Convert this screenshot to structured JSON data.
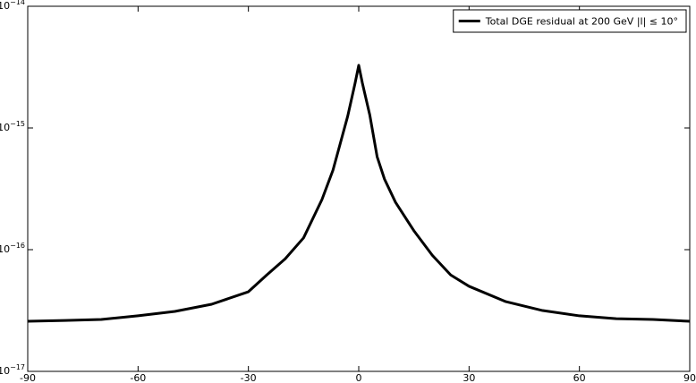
{
  "chart_data": {
    "type": "line",
    "log_y": true,
    "x": [
      -90,
      -80,
      -70,
      -60,
      -50,
      -40,
      -30,
      -25,
      -20,
      -15,
      -10,
      -7,
      -5,
      -3,
      -1,
      0,
      1,
      3,
      5,
      7,
      10,
      15,
      20,
      25,
      30,
      40,
      50,
      60,
      70,
      80,
      90
    ],
    "series": [
      {
        "name": "Total DGE residual at 200 GeV |l| ≤ 10°",
        "color": "#000000",
        "values": [
          2.58e-17,
          2.62e-17,
          2.67e-17,
          2.86e-17,
          3.11e-17,
          3.56e-17,
          4.51e-17,
          6.2e-17,
          8.4e-17,
          1.25e-16,
          2.58e-16,
          4.5e-16,
          7.5e-16,
          1.25e-15,
          2.33e-15,
          3.27e-15,
          2.33e-15,
          1.28e-15,
          5.8e-16,
          3.8e-16,
          2.45e-16,
          1.43e-16,
          9e-17,
          6.2e-17,
          5e-17,
          3.74e-17,
          3.16e-17,
          2.86e-17,
          2.71e-17,
          2.67e-17,
          2.58e-17
        ]
      }
    ],
    "xlim": [
      -90,
      90
    ],
    "xticks": [
      -90,
      -60,
      -30,
      0,
      30,
      60,
      90
    ],
    "ylim": [
      1e-17,
      1e-14
    ],
    "yticks": [
      {
        "value": 1e-17,
        "label": "10",
        "exponent": "−17"
      },
      {
        "value": 1e-16,
        "label": "10",
        "exponent": "−16"
      },
      {
        "value": 1e-15,
        "label": "10",
        "exponent": "−15"
      },
      {
        "value": 1e-14,
        "label": "10",
        "exponent": "−14"
      }
    ],
    "legend": "upper right"
  }
}
